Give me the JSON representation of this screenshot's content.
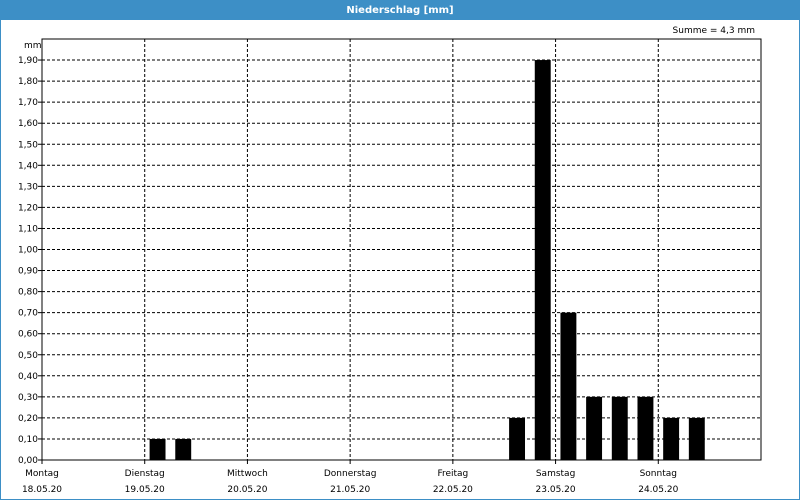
{
  "window": {
    "title": "Niederschlag [mm]",
    "summary": "Summe = 4,3 mm"
  },
  "chart_data": {
    "type": "bar",
    "title": "Niederschlag [mm]",
    "ylabel": "mm",
    "ylim": [
      0,
      2.0
    ],
    "yticks": [
      "0,00",
      "0,10",
      "0,20",
      "0,30",
      "0,40",
      "0,50",
      "0,60",
      "0,70",
      "0,80",
      "0,90",
      "1,00",
      "1,10",
      "1,20",
      "1,30",
      "1,40",
      "1,50",
      "1,60",
      "1,70",
      "1,80",
      "1,90"
    ],
    "grid": true,
    "days": [
      {
        "weekday": "Montag",
        "date": "18.05.20"
      },
      {
        "weekday": "Dienstag",
        "date": "19.05.20"
      },
      {
        "weekday": "Mittwoch",
        "date": "20.05.20"
      },
      {
        "weekday": "Donnerstag",
        "date": "21.05.20"
      },
      {
        "weekday": "Freitag",
        "date": "22.05.20"
      },
      {
        "weekday": "Samstag",
        "date": "23.05.20"
      },
      {
        "weekday": "Sonntag",
        "date": "24.05.20"
      }
    ],
    "interval_hours": 6,
    "values": [
      0,
      0,
      0,
      0,
      0.1,
      0.1,
      0,
      0,
      0,
      0,
      0,
      0,
      0,
      0,
      0,
      0,
      0,
      0,
      0.2,
      1.9,
      0.7,
      0.3,
      0.3,
      0.3,
      0.2,
      0.2,
      0,
      0
    ],
    "bar_color": "#000000"
  }
}
